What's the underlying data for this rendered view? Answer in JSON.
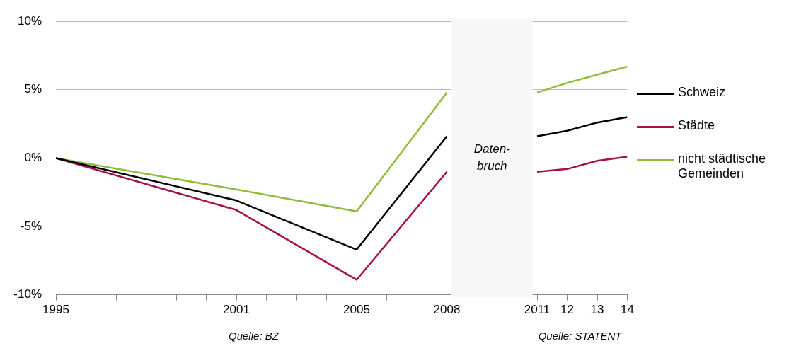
{
  "chart_data": {
    "type": "line",
    "xlim": [
      1995,
      2014
    ],
    "xticks": [
      {
        "value": 1995,
        "label": "1995"
      },
      {
        "value": 1996,
        "label": null
      },
      {
        "value": 1997,
        "label": null
      },
      {
        "value": 1998,
        "label": null
      },
      {
        "value": 1999,
        "label": null
      },
      {
        "value": 2000,
        "label": null
      },
      {
        "value": 2001,
        "label": "2001"
      },
      {
        "value": 2002,
        "label": null
      },
      {
        "value": 2003,
        "label": null
      },
      {
        "value": 2004,
        "label": null
      },
      {
        "value": 2005,
        "label": "2005"
      },
      {
        "value": 2006,
        "label": null
      },
      {
        "value": 2007,
        "label": null
      },
      {
        "value": 2008,
        "label": "2008"
      },
      {
        "value": 2011,
        "label": "2011"
      },
      {
        "value": 2012,
        "label": "12"
      },
      {
        "value": 2013,
        "label": "13"
      },
      {
        "value": 2014,
        "label": "14"
      }
    ],
    "ylim": [
      -10,
      10
    ],
    "yticks": [
      {
        "value": -10,
        "label": "-10%"
      },
      {
        "value": -5,
        "label": "-5%"
      },
      {
        "value": 0,
        "label": "0%"
      },
      {
        "value": 5,
        "label": "5%"
      },
      {
        "value": 10,
        "label": "10%"
      }
    ],
    "grid": "y",
    "legend": "right",
    "marker": "none",
    "line_style": "solid",
    "series": [
      {
        "name": "Schweiz",
        "color": "#000000",
        "x": [
          1995,
          2001,
          2005,
          2008,
          2009.5,
          2011,
          2012,
          2013,
          2014
        ],
        "values": [
          0,
          -3.1,
          -6.7,
          1.6,
          null,
          1.6,
          2.0,
          2.6,
          3.0
        ]
      },
      {
        "name": "Städte",
        "color": "#a50f4b",
        "x": [
          1995,
          2001,
          2005,
          2008,
          2009.5,
          2011,
          2012,
          2013,
          2014
        ],
        "values": [
          0,
          -3.8,
          -8.9,
          -1.0,
          null,
          -1.0,
          -0.8,
          -0.2,
          0.1
        ]
      },
      {
        "name": "nicht städtische Gemeinden",
        "color": "#92bb3c",
        "x": [
          1995,
          2001,
          2005,
          2008,
          2009.5,
          2011,
          2012,
          2013,
          2014
        ],
        "values": [
          0,
          -2.3,
          -3.9,
          4.8,
          null,
          4.8,
          5.5,
          6.1,
          6.7
        ]
      }
    ],
    "bands": [
      {
        "axis": "x",
        "from": 2008.15,
        "to": 2010.85,
        "label": "Daten-\nbruch",
        "color": "#f7f7f7"
      }
    ],
    "annotations": [
      "Quelle: BZ",
      "Quelle: STATENT"
    ]
  }
}
